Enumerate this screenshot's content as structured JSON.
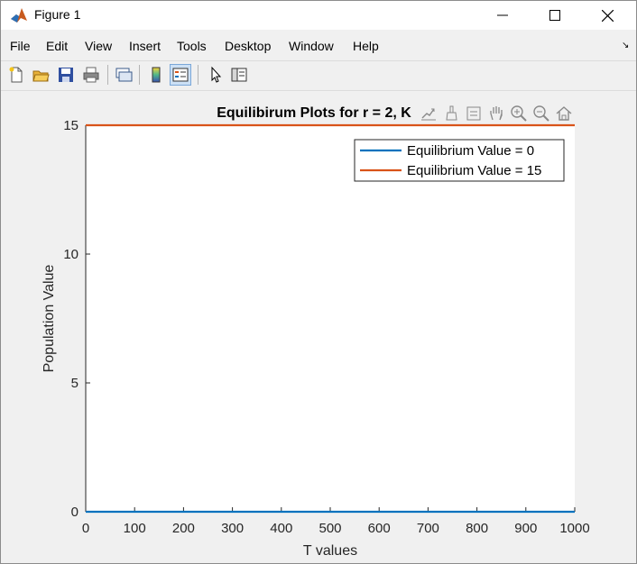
{
  "window": {
    "title": "Figure 1",
    "icons": {
      "app": "matlab-icon",
      "minimize": "minimize-icon",
      "maximize": "maximize-icon",
      "close": "close-icon"
    }
  },
  "menubar": {
    "items": [
      "File",
      "Edit",
      "View",
      "Insert",
      "Tools",
      "Desktop",
      "Window",
      "Help"
    ],
    "dock_arrow": "↘"
  },
  "toolbar": {
    "buttons": [
      "new-figure-icon",
      "open-file-icon",
      "save-icon",
      "print-icon",
      "link-plot-icon",
      "insert-colorbar-icon",
      "insert-legend-icon",
      "edit-plot-icon",
      "property-inspector-icon"
    ]
  },
  "axes_toolbar": {
    "buttons": [
      "export-icon",
      "brush-icon",
      "data-tips-icon",
      "pan-icon",
      "zoom-in-icon",
      "zoom-out-icon",
      "home-icon"
    ]
  },
  "chart_data": {
    "type": "line",
    "title": "Equilibirum Plots for r = 2, K",
    "xlabel": "T values",
    "ylabel": "Population Value",
    "xlim": [
      0,
      1000
    ],
    "ylim": [
      0,
      15
    ],
    "xticks": [
      0,
      100,
      200,
      300,
      400,
      500,
      600,
      700,
      800,
      900,
      1000
    ],
    "yticks": [
      0,
      5,
      10,
      15
    ],
    "grid": false,
    "legend_position": "top-right",
    "series": [
      {
        "name": "Equilibrium Value = 0",
        "x": [
          0,
          1000
        ],
        "y": [
          0,
          0
        ],
        "color": "#0072bd"
      },
      {
        "name": "Equilibrium Value = 15",
        "x": [
          0,
          1000
        ],
        "y": [
          15,
          15
        ],
        "color": "#d95319"
      }
    ]
  }
}
